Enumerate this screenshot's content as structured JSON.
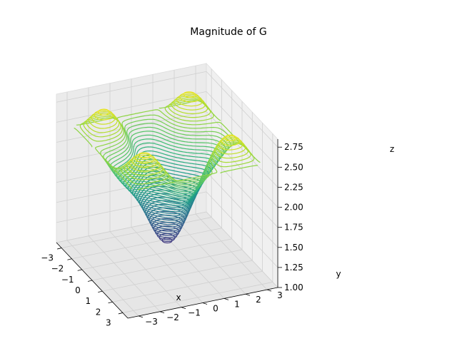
{
  "chart_data": {
    "type": "contour3d",
    "title": "Magnitude of G",
    "xlabel": "x",
    "ylabel": "y",
    "zlabel": "z",
    "xlim": [
      -3.5,
      3.5
    ],
    "ylim": [
      -3.5,
      3.5
    ],
    "zlim": [
      1.0,
      2.85
    ],
    "x_ticks": [
      -3,
      -2,
      -1,
      0,
      1,
      2,
      3
    ],
    "y_ticks": [
      -3,
      -2,
      -1,
      0,
      1,
      2,
      3
    ],
    "z_ticks": [
      "1.00",
      "1.25",
      "1.50",
      "1.75",
      "2.00",
      "2.25",
      "2.50",
      "2.75"
    ],
    "x_tick_labels": [
      "−3",
      "−2",
      "−1",
      "0",
      "1",
      "2",
      "3"
    ],
    "y_tick_labels": [
      "−3",
      "−2",
      "−1",
      "0",
      "1",
      "2",
      "3"
    ],
    "z_tick_labels": [
      "1.00",
      "1.25",
      "1.50",
      "1.75",
      "2.00",
      "2.25",
      "2.50",
      "2.75"
    ],
    "colormap": "viridis",
    "contour_levels": 50,
    "z_range_plotted": [
      1.0,
      2.8
    ],
    "grid": true,
    "pane_color": "#f2f2f2"
  }
}
